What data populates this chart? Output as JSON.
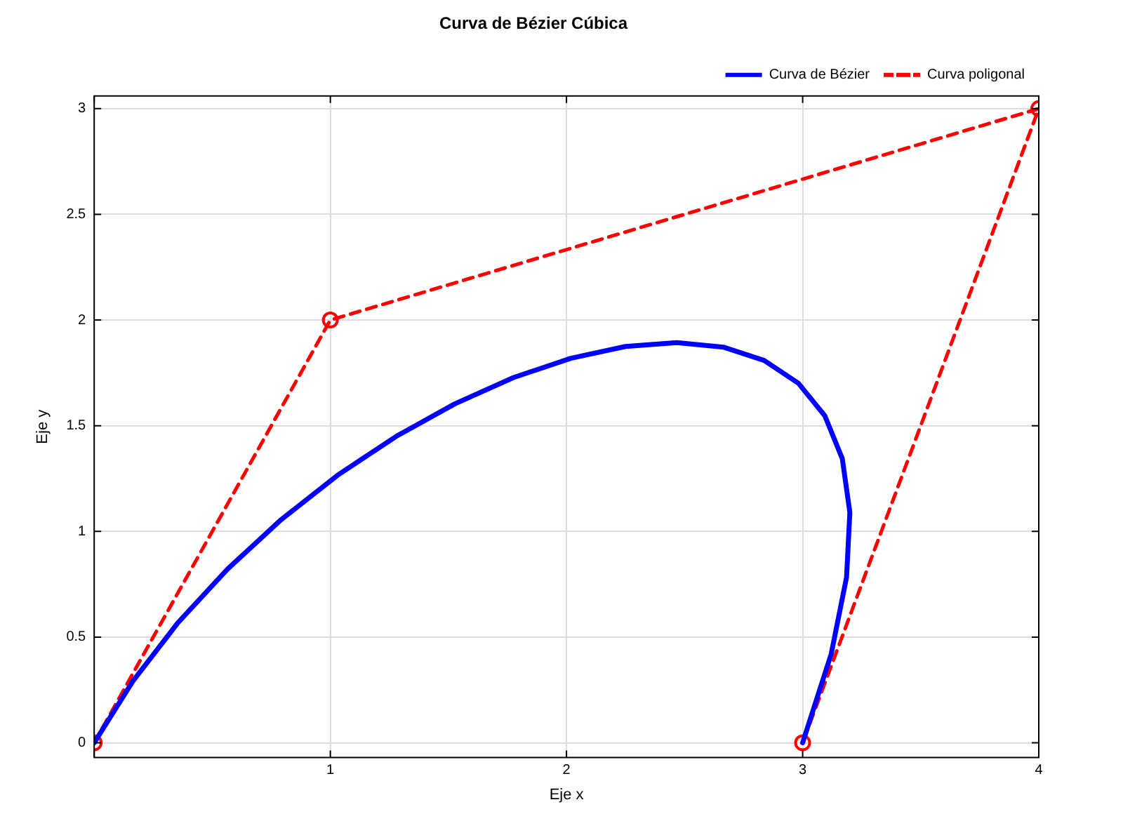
{
  "chart_data": {
    "type": "line",
    "title": "Curva de Bézier Cúbica",
    "xlabel": "Eje x",
    "ylabel": "Eje y",
    "xlim": [
      0,
      4
    ],
    "xticks": [
      {
        "value": 0,
        "label": null
      },
      1,
      2,
      3,
      4
    ],
    "ylim": [
      -0.07,
      3.06
    ],
    "yticks": [
      0,
      0.5,
      1,
      1.5,
      2,
      2.5,
      3
    ],
    "grid": true,
    "legend": "top right",
    "series": [
      {
        "name": "Curva de Bézier",
        "color": "#0000ff",
        "marker": "none",
        "line_style": "solid",
        "x": [
          0,
          0.164,
          0.354,
          0.565,
          0.792,
          1.031,
          1.278,
          1.528,
          1.776,
          2.018,
          2.25,
          2.467,
          2.664,
          2.837,
          2.982,
          3.094,
          3.168,
          3.2,
          3.186,
          3.121,
          3
        ],
        "values": [
          0,
          0.292,
          0.567,
          0.822,
          1.056,
          1.266,
          1.449,
          1.604,
          1.728,
          1.819,
          1.875,
          1.893,
          1.872,
          1.809,
          1.701,
          1.547,
          1.344,
          1.09,
          0.783,
          0.42,
          0
        ]
      },
      {
        "name": "Curva poligonal",
        "color": "#ff0000",
        "marker": "circle",
        "line_style": "dashed",
        "x": [
          0,
          1,
          4,
          3
        ],
        "values": [
          0,
          2,
          3,
          0
        ]
      }
    ]
  }
}
